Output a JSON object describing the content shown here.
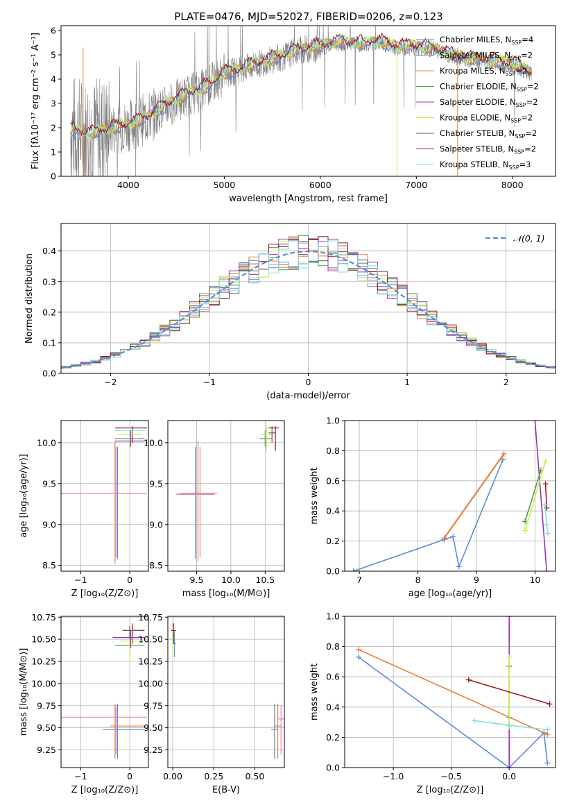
{
  "title": "PLATE=0476, MJD=52027, FIBERID=0206, z=0.123",
  "colors": {
    "chabrier_miles": "#5b8bd9",
    "salpeter_miles": "#8a8ad8",
    "kroupa_miles": "#e8803a",
    "chabrier_elodie": "#4f9a4f",
    "salpeter_elodie": "#9b30b8",
    "kroupa_elodie": "#c7ef4a",
    "chabrier_stelib": "#606060",
    "salpeter_stelib": "#a01820",
    "kroupa_stelib": "#7fdde0",
    "data": "#808080",
    "pink": "#e87cc2",
    "normal_curve": "#5b8bd9"
  },
  "chart_data": [
    {
      "type": "line",
      "name": "spectrum",
      "xlabel": "wavelength [Angstrom, rest frame]",
      "ylabel": "Flux [fλ10⁻¹⁷ erg cm⁻² s⁻¹ A⁻¹]",
      "xlim": [
        3300,
        8450
      ],
      "ylim": [
        0,
        6.2
      ],
      "xticks": [
        "4000",
        "5000",
        "6000",
        "7000",
        "8000"
      ],
      "yticks": [
        "0",
        "1",
        "2",
        "3",
        "4",
        "5",
        "6"
      ],
      "x": [
        3400,
        3600,
        3800,
        4000,
        4200,
        4400,
        4600,
        4800,
        5000,
        5200,
        5400,
        5600,
        5800,
        6000,
        6200,
        6400,
        6600,
        6800,
        7000,
        7200,
        7400,
        7600,
        7800,
        8000,
        8200
      ],
      "y": [
        1.9,
        1.7,
        1.9,
        2.1,
        2.4,
        2.9,
        3.3,
        3.6,
        4.2,
        4.4,
        4.7,
        4.9,
        5.2,
        5.3,
        5.5,
        5.4,
        5.5,
        5.3,
        5.3,
        5.2,
        4.9,
        4.8,
        4.7,
        4.6,
        4.2
      ],
      "legend_position": "upper right",
      "legend": [
        {
          "label": "Chabrier MILES",
          "n": "4",
          "color": "#5b8bd9"
        },
        {
          "label": "Salpeter MILES",
          "n": "2",
          "color": "#8a8ad8"
        },
        {
          "label": "Kroupa MILES",
          "n": "2",
          "color": "#e8803a"
        },
        {
          "label": "Chabrier ELODIE",
          "n": "2",
          "color": "#4f9a4f"
        },
        {
          "label": "Salpeter ELODIE",
          "n": "2",
          "color": "#9b30b8"
        },
        {
          "label": "Kroupa ELODIE",
          "n": "2",
          "color": "#c7ef4a"
        },
        {
          "label": "Chabrier STELIB",
          "n": "2",
          "color": "#606060"
        },
        {
          "label": "Salpeter STELIB",
          "n": "2",
          "color": "#a01820"
        },
        {
          "label": "Kroupa STELIB",
          "n": "3",
          "color": "#7fdde0"
        }
      ]
    },
    {
      "type": "line",
      "name": "residual-histogram",
      "xlabel": "(data-model)/error",
      "ylabel": "Normed distribution",
      "xlim": [
        -2.5,
        2.5
      ],
      "ylim": [
        0,
        0.49
      ],
      "xticks": [
        "−2",
        "−1",
        "0",
        "1",
        "2"
      ],
      "yticks": [
        "0.0",
        "0.1",
        "0.2",
        "0.3",
        "0.4"
      ],
      "legend": "𝒩(0, 1)",
      "legend_position": "upper right",
      "grid": true
    },
    {
      "type": "scatter",
      "name": "age-vs-metallicity",
      "xlabel": "Z [log₁₀(Z/Z⊙)]",
      "ylabel": "age  [log₁₀(age/yr)]",
      "xlim": [
        -1.4,
        0.38
      ],
      "ylim": [
        8.43,
        10.27
      ],
      "xticks": [
        "−1",
        "0"
      ],
      "yticks": [
        "8.5",
        "9.0",
        "9.5",
        "10.0"
      ],
      "grid": true
    },
    {
      "type": "scatter",
      "name": "age-vs-mass",
      "xlabel": "mass [log₁₀(M/M⊙)]",
      "ylabel": "",
      "xlim": [
        9.08,
        10.78
      ],
      "ylim": [
        8.43,
        10.27
      ],
      "xticks": [
        "9.5",
        "10.0",
        "10.5"
      ],
      "yticks": [
        "8.5",
        "9.0",
        "9.5",
        "10.0"
      ],
      "grid": true
    },
    {
      "type": "line",
      "name": "weight-vs-age",
      "xlabel": "age  [log₁₀(age/yr)]",
      "ylabel": "mass weight",
      "xlim": [
        6.75,
        10.35
      ],
      "ylim": [
        0,
        1
      ],
      "xticks": [
        "7",
        "8",
        "9",
        "10"
      ],
      "yticks": [
        "0.0",
        "0.2",
        "0.4",
        "0.6",
        "0.8",
        "1.0"
      ],
      "grid": true,
      "series": [
        {
          "color": "#5b8bd9",
          "x": [
            6.9,
            8.45,
            8.6,
            8.7,
            9.45
          ],
          "y": [
            0.0,
            0.21,
            0.23,
            0.03,
            0.74
          ]
        },
        {
          "color": "#e8803a",
          "x": [
            8.45,
            9.47
          ],
          "y": [
            0.22,
            0.78
          ]
        },
        {
          "color": "#9b30b8",
          "x": [
            10.0,
            10.2
          ],
          "y": [
            1.0,
            0.0
          ]
        },
        {
          "color": "#4f9a4f",
          "x": [
            9.83,
            10.1
          ],
          "y": [
            0.33,
            0.67
          ]
        },
        {
          "color": "#c7ef4a",
          "x": [
            9.83,
            10.18
          ],
          "y": [
            0.27,
            0.73
          ]
        },
        {
          "color": "#a01820",
          "x": [
            10.18,
            10.2
          ],
          "y": [
            0.58,
            0.42
          ]
        },
        {
          "color": "#7fdde0",
          "x": [
            10.17,
            10.2,
            10.22
          ],
          "y": [
            0.44,
            0.31,
            0.25
          ]
        }
      ]
    },
    {
      "type": "scatter",
      "name": "mass-vs-metallicity",
      "xlabel": "Z [log₁₀(Z/Z⊙)]",
      "ylabel": "mass [log₁₀(M/M⊙)]",
      "xlim": [
        -1.4,
        0.38
      ],
      "ylim": [
        9.05,
        10.76
      ],
      "xticks": [
        "−1",
        "0"
      ],
      "yticks": [
        "9.25",
        "9.50",
        "9.75",
        "10.00",
        "10.25",
        "10.50",
        "10.75"
      ],
      "grid": true
    },
    {
      "type": "scatter",
      "name": "mass-vs-extinction",
      "xlabel": "E(B-V)",
      "ylabel": "",
      "xlim": [
        -0.03,
        0.68
      ],
      "ylim": [
        9.05,
        10.76
      ],
      "xticks": [
        "0.00",
        "0.25",
        "0.50"
      ],
      "yticks": [
        "9.25",
        "9.50",
        "9.75",
        "10.00",
        "10.25",
        "10.50",
        "10.75"
      ],
      "grid": true
    },
    {
      "type": "line",
      "name": "weight-vs-metallicity",
      "xlabel": "Z [log₁₀(Z/Z⊙)]",
      "ylabel": "mass weight",
      "xlim": [
        -1.42,
        0.4
      ],
      "ylim": [
        0,
        1
      ],
      "xticks": [
        "−1.0",
        "−0.5",
        "0.0"
      ],
      "yticks": [
        "0.0",
        "0.2",
        "0.4",
        "0.6",
        "0.8",
        "1.0"
      ],
      "grid": true,
      "series": [
        {
          "color": "#5b8bd9",
          "x": [
            -1.3,
            0.0,
            0.3,
            0.33
          ],
          "y": [
            0.73,
            0.0,
            0.23,
            0.03
          ]
        },
        {
          "color": "#e8803a",
          "x": [
            -1.3,
            0.33
          ],
          "y": [
            0.78,
            0.22
          ]
        },
        {
          "color": "#9b30b8",
          "x": [
            0.0,
            0.0
          ],
          "y": [
            1.0,
            0.0
          ]
        },
        {
          "color": "#4f9a4f",
          "x": [
            0.0,
            0.0
          ],
          "y": [
            0.33,
            0.67
          ]
        },
        {
          "color": "#c7ef4a",
          "x": [
            0.0,
            0.0
          ],
          "y": [
            0.27,
            0.73
          ]
        },
        {
          "color": "#a01820",
          "x": [
            -0.35,
            0.35
          ],
          "y": [
            0.58,
            0.42
          ]
        },
        {
          "color": "#7fdde0",
          "x": [
            -0.3,
            0.0,
            0.33
          ],
          "y": [
            0.31,
            0.28,
            0.25
          ]
        }
      ]
    }
  ]
}
